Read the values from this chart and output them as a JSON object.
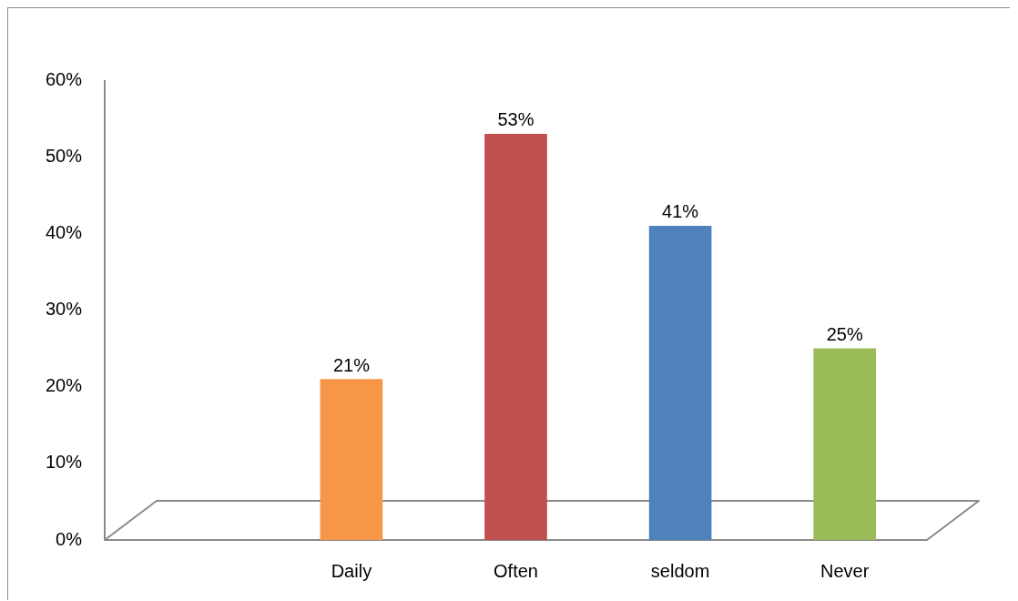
{
  "chart_data": {
    "type": "bar",
    "categories": [
      null,
      "Daily",
      "Often",
      "seldom",
      "Never"
    ],
    "values": [
      null,
      21,
      53,
      41,
      25
    ],
    "colors": [
      null,
      "#f79646",
      "#c0504d",
      "#4f81bd",
      "#9bbb59"
    ],
    "value_labels": [
      null,
      "21%",
      "53%",
      "41%",
      "25%"
    ],
    "ylim": [
      0,
      60
    ],
    "yticks": [
      {
        "value": 0,
        "label": "0%"
      },
      {
        "value": 10,
        "label": "10%"
      },
      {
        "value": 20,
        "label": "20%"
      },
      {
        "value": 30,
        "label": "30%"
      },
      {
        "value": 40,
        "label": "40%"
      },
      {
        "value": 50,
        "label": "50%"
      },
      {
        "value": 60,
        "label": "60%"
      }
    ]
  }
}
